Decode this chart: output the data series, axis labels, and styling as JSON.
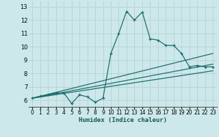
{
  "xlabel": "Humidex (Indice chaleur)",
  "bg_color": "#cce8ea",
  "grid_color": "#b8d4d6",
  "line_color": "#1a6b6b",
  "x_ticks": [
    0,
    1,
    2,
    3,
    4,
    5,
    6,
    7,
    8,
    9,
    10,
    11,
    12,
    13,
    14,
    15,
    16,
    17,
    18,
    19,
    20,
    21,
    22,
    23
  ],
  "y_ticks": [
    6,
    7,
    8,
    9,
    10,
    11,
    12,
    13
  ],
  "ylim": [
    5.5,
    13.4
  ],
  "xlim": [
    -0.5,
    23.5
  ],
  "series1_x": [
    0,
    1,
    2,
    3,
    4,
    5,
    6,
    7,
    8,
    9,
    10,
    11,
    12,
    13,
    14,
    15,
    16,
    17,
    18,
    19,
    20,
    21,
    22,
    23
  ],
  "series1_y": [
    6.15,
    6.3,
    6.4,
    6.55,
    6.55,
    5.75,
    6.4,
    6.25,
    5.85,
    6.15,
    9.5,
    11.0,
    12.65,
    12.0,
    12.6,
    10.6,
    10.5,
    10.1,
    10.1,
    9.5,
    8.5,
    8.6,
    8.5,
    8.5
  ],
  "series2_x": [
    0,
    23
  ],
  "series2_y": [
    6.15,
    9.5
  ],
  "series3_x": [
    0,
    23
  ],
  "series3_y": [
    6.15,
    8.7
  ],
  "series4_x": [
    0,
    23
  ],
  "series4_y": [
    6.15,
    8.2
  ]
}
